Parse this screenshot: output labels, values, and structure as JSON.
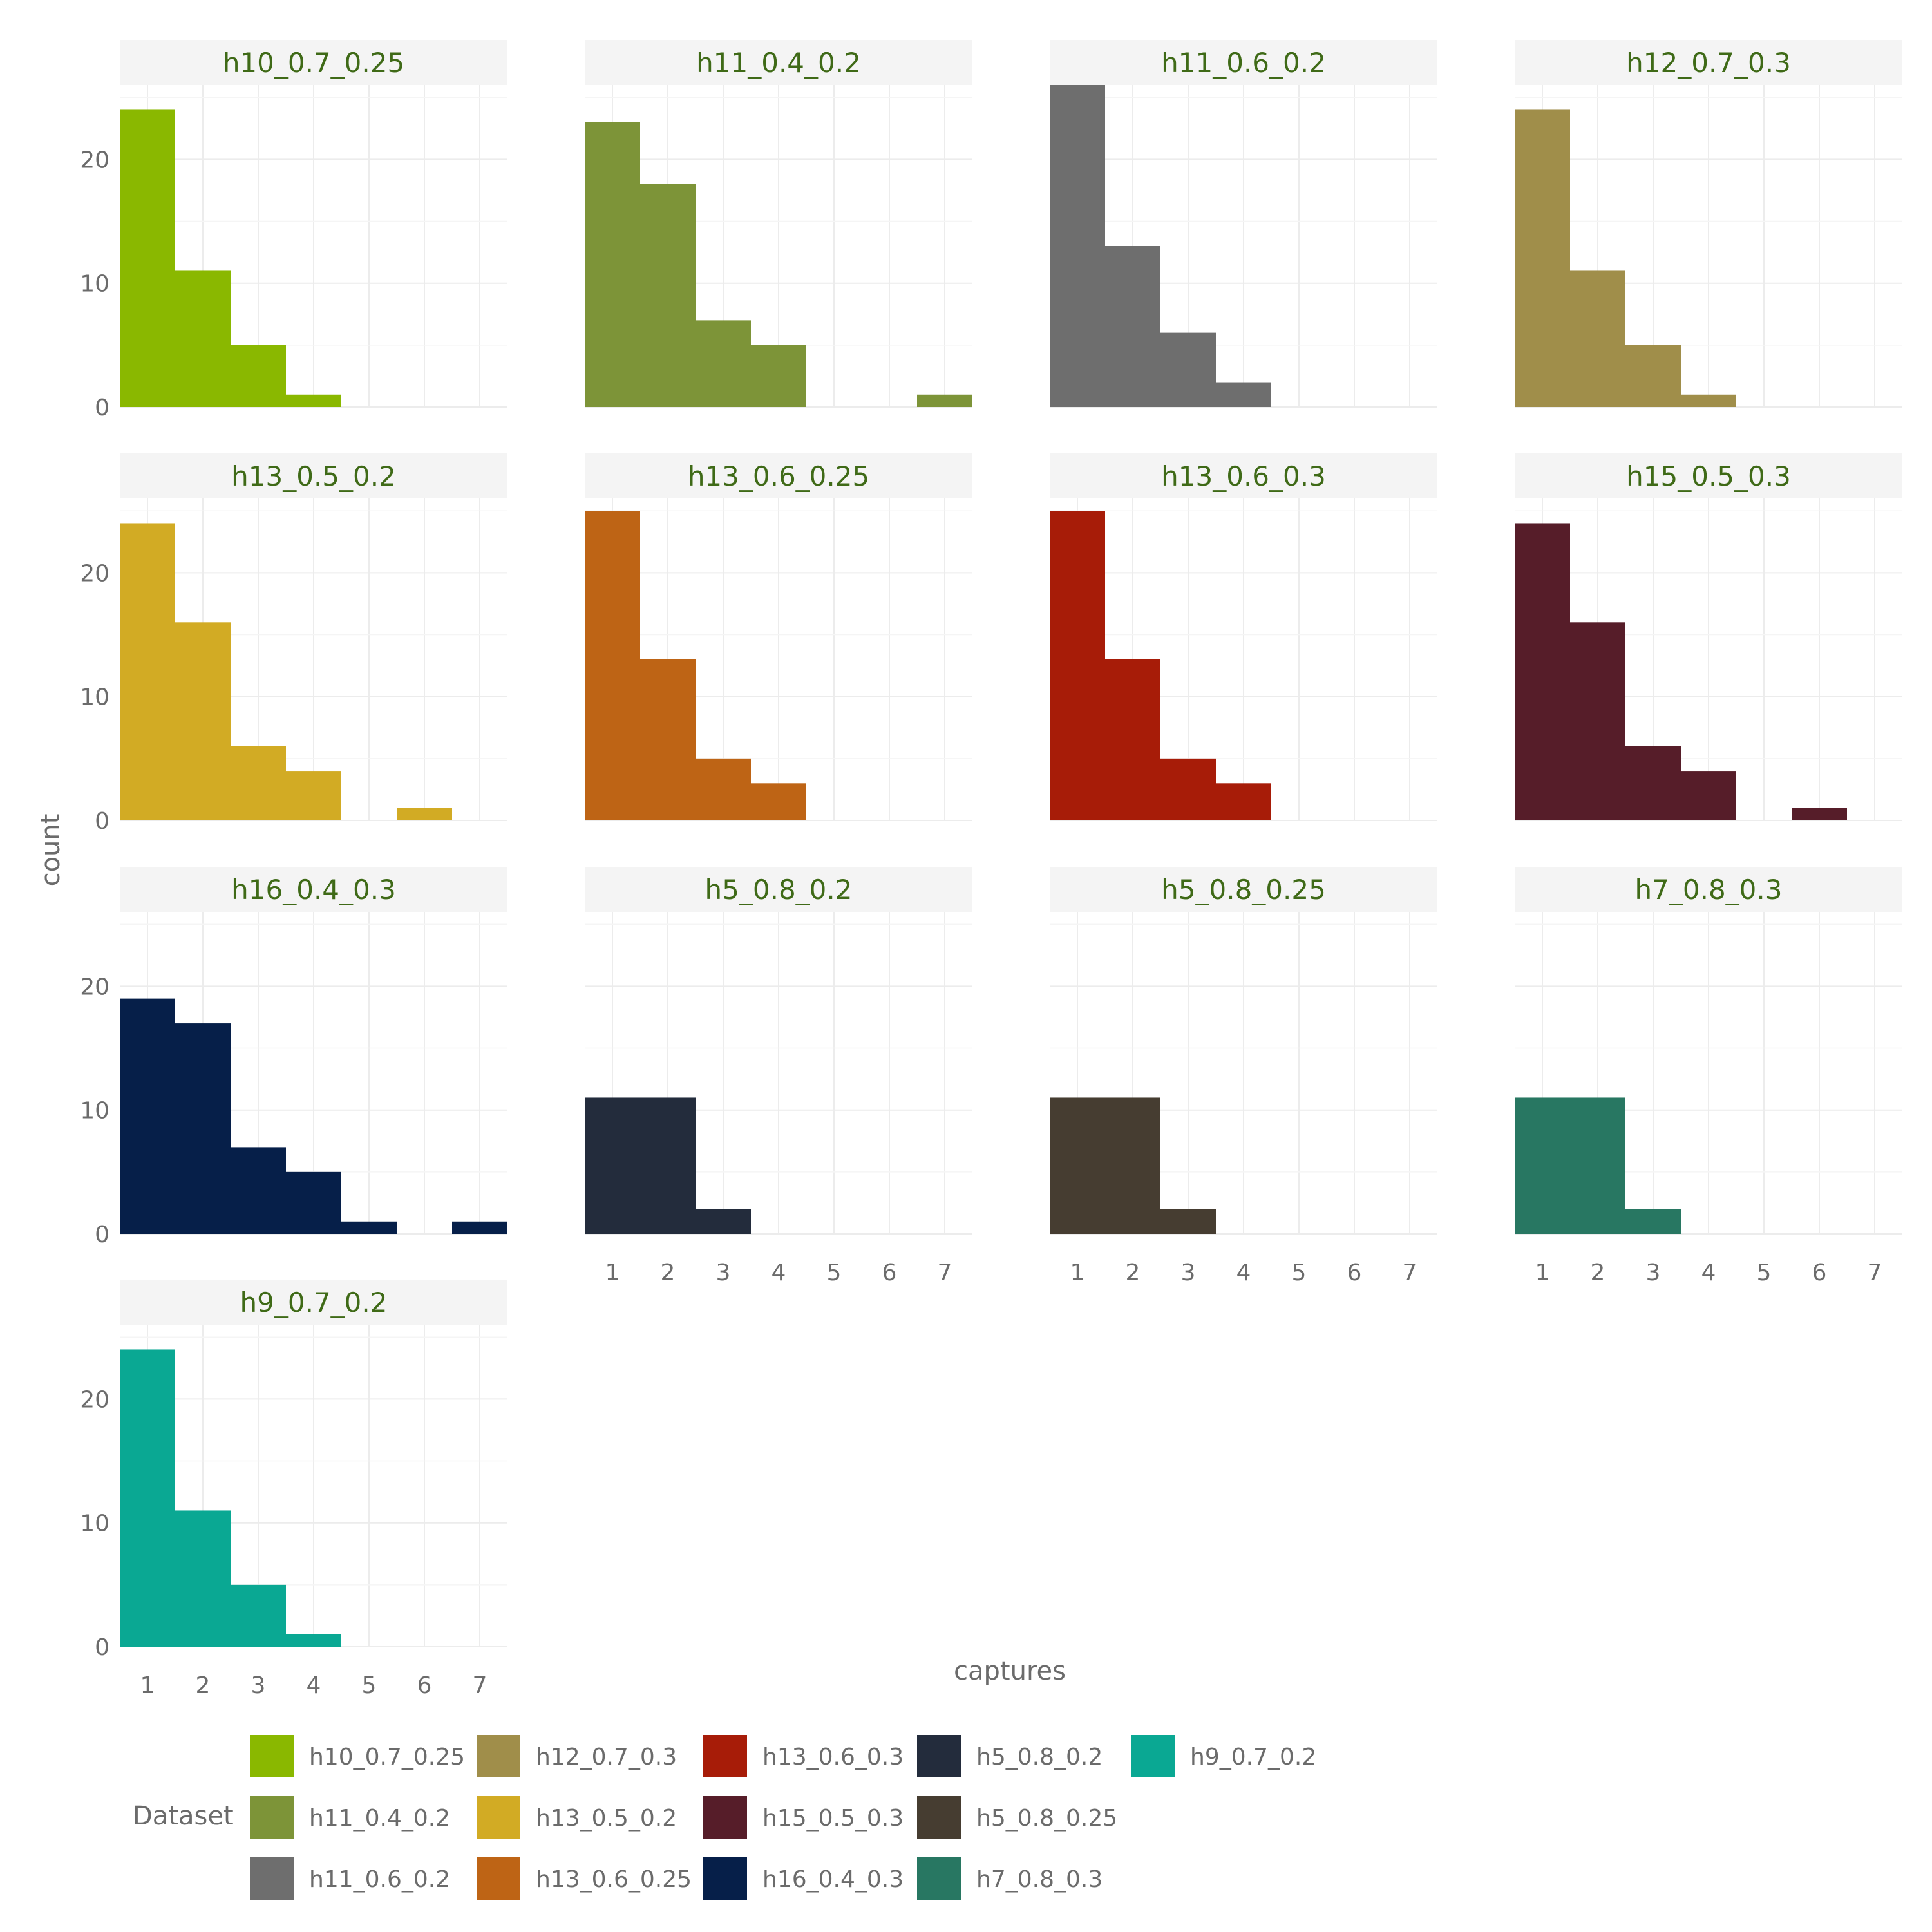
{
  "chart_data": {
    "type": "bar",
    "subtype": "faceted-histogram",
    "xlabel": "captures",
    "ylabel": "count",
    "x_ticks": [
      1,
      2,
      3,
      4,
      5,
      6,
      7
    ],
    "y_ticks": [
      0,
      10,
      20
    ],
    "xlim": [
      0.5,
      7.5
    ],
    "ylim": [
      0,
      26
    ],
    "grid": true,
    "legend": {
      "title": "Dataset",
      "placement": "bottom",
      "entries": [
        "h10_0.7_0.25",
        "h11_0.4_0.2",
        "h11_0.6_0.2",
        "h12_0.7_0.3",
        "h13_0.5_0.2",
        "h13_0.6_0.25",
        "h13_0.6_0.3",
        "h15_0.5_0.3",
        "h16_0.4_0.3",
        "h5_0.8_0.2",
        "h5_0.8_0.25",
        "h7_0.8_0.3",
        "h9_0.7_0.2"
      ]
    },
    "panels": [
      {
        "name": "h10_0.7_0.25",
        "color": "#8ab800",
        "x": [
          1,
          2,
          3,
          4
        ],
        "values": [
          24,
          11,
          5,
          1
        ]
      },
      {
        "name": "h11_0.4_0.2",
        "color": "#7d9438",
        "x": [
          1,
          2,
          3,
          4,
          7
        ],
        "values": [
          23,
          18,
          7,
          5,
          1
        ]
      },
      {
        "name": "h11_0.6_0.2",
        "color": "#6e6e6e",
        "x": [
          1,
          2,
          3,
          4
        ],
        "values": [
          26,
          13,
          6,
          2
        ]
      },
      {
        "name": "h12_0.7_0.3",
        "color": "#a08e4a",
        "x": [
          1,
          2,
          3,
          4
        ],
        "values": [
          24,
          11,
          5,
          1
        ]
      },
      {
        "name": "h13_0.5_0.2",
        "color": "#d2ab24",
        "x": [
          1,
          2,
          3,
          4,
          6
        ],
        "values": [
          24,
          16,
          6,
          4,
          1
        ]
      },
      {
        "name": "h13_0.6_0.25",
        "color": "#be6415",
        "x": [
          1,
          2,
          3,
          4
        ],
        "values": [
          25,
          13,
          5,
          3
        ]
      },
      {
        "name": "h13_0.6_0.3",
        "color": "#a71c08",
        "x": [
          1,
          2,
          3,
          4
        ],
        "values": [
          25,
          13,
          5,
          3
        ]
      },
      {
        "name": "h15_0.5_0.3",
        "color": "#561d29",
        "x": [
          1,
          2,
          3,
          4,
          6
        ],
        "values": [
          24,
          16,
          6,
          4,
          1
        ]
      },
      {
        "name": "h16_0.4_0.3",
        "color": "#061f49",
        "x": [
          1,
          2,
          3,
          4,
          5,
          7
        ],
        "values": [
          19,
          17,
          7,
          5,
          1,
          1
        ]
      },
      {
        "name": "h5_0.8_0.2",
        "color": "#232c3c",
        "x": [
          1,
          2,
          3
        ],
        "values": [
          11,
          11,
          2
        ]
      },
      {
        "name": "h5_0.8_0.25",
        "color": "#463d31",
        "x": [
          1,
          2,
          3
        ],
        "values": [
          11,
          11,
          2
        ]
      },
      {
        "name": "h7_0.8_0.3",
        "color": "#287762",
        "x": [
          1,
          2,
          3
        ],
        "values": [
          11,
          11,
          2
        ]
      },
      {
        "name": "h9_0.7_0.2",
        "color": "#0aa893",
        "x": [
          1,
          2,
          3,
          4
        ],
        "values": [
          24,
          11,
          5,
          1
        ]
      }
    ]
  }
}
